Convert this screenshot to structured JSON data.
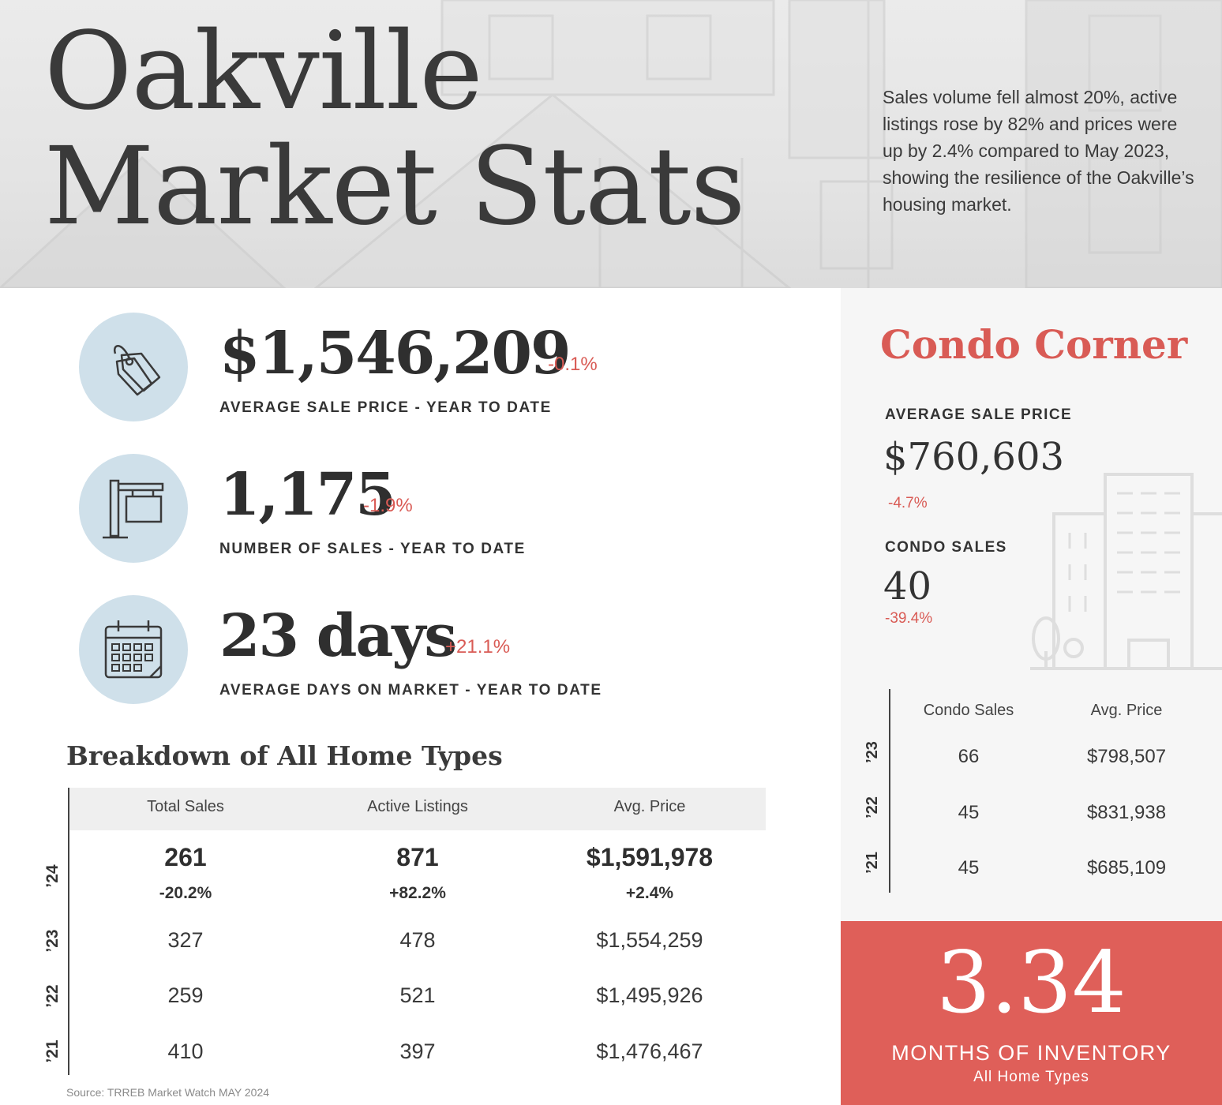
{
  "header": {
    "title_line1": "Oakville",
    "title_line2": "Market Stats",
    "intro": "Sales volume fell almost 20%, active listings rose by 82% and prices were up by 2.4% compared to May 2023, showing the resilience of the Oakville’s housing market."
  },
  "stats": [
    {
      "icon": "price-tag-icon",
      "value": "$1,546,209",
      "change": "-0.1%",
      "label": "AVERAGE SALE PRICE - YEAR TO DATE"
    },
    {
      "icon": "for-sale-sign-icon",
      "value": "1,175",
      "change": "-1.9%",
      "label": "NUMBER OF SALES - YEAR TO DATE"
    },
    {
      "icon": "calendar-icon",
      "value": "23 days",
      "change": "+21.1%",
      "label": "AVERAGE DAYS ON MARKET - YEAR TO DATE"
    }
  ],
  "breakdown": {
    "title": "Breakdown of All Home Types",
    "columns": [
      "Total Sales",
      "Active Listings",
      "Avg. Price"
    ],
    "current": {
      "year": "’24",
      "values": [
        "261",
        "871",
        "$1,591,978"
      ],
      "changes": [
        "-20.2%",
        "+82.2%",
        "+2.4%"
      ]
    },
    "rows": [
      {
        "year": "’23",
        "values": [
          "327",
          "478",
          "$1,554,259"
        ]
      },
      {
        "year": "’22",
        "values": [
          "259",
          "521",
          "$1,495,926"
        ]
      },
      {
        "year": "’21",
        "values": [
          "410",
          "397",
          "$1,476,467"
        ]
      }
    ],
    "source": "Source: TRREB Market Watch MAY 2024"
  },
  "condo": {
    "title": "Condo Corner",
    "avg_label": "AVERAGE SALE PRICE",
    "avg_value": "$760,603",
    "avg_change": "-4.7%",
    "sales_label": "CONDO SALES",
    "sales_value": "40",
    "sales_change": "-39.4%",
    "columns": [
      "Condo Sales",
      "Avg. Price"
    ],
    "rows": [
      {
        "year": "’23",
        "values": [
          "66",
          "$798,507"
        ]
      },
      {
        "year": "’22",
        "values": [
          "45",
          "$831,938"
        ]
      },
      {
        "year": "’21",
        "values": [
          "45",
          "$685,109"
        ]
      }
    ]
  },
  "inventory": {
    "value": "3.34",
    "label": "MONTHS OF INVENTORY",
    "sub": "All Home Types"
  },
  "colors": {
    "accent": "#d95b55",
    "inventory_bg": "#df5f59",
    "icon_circle": "#cfe0ea"
  }
}
